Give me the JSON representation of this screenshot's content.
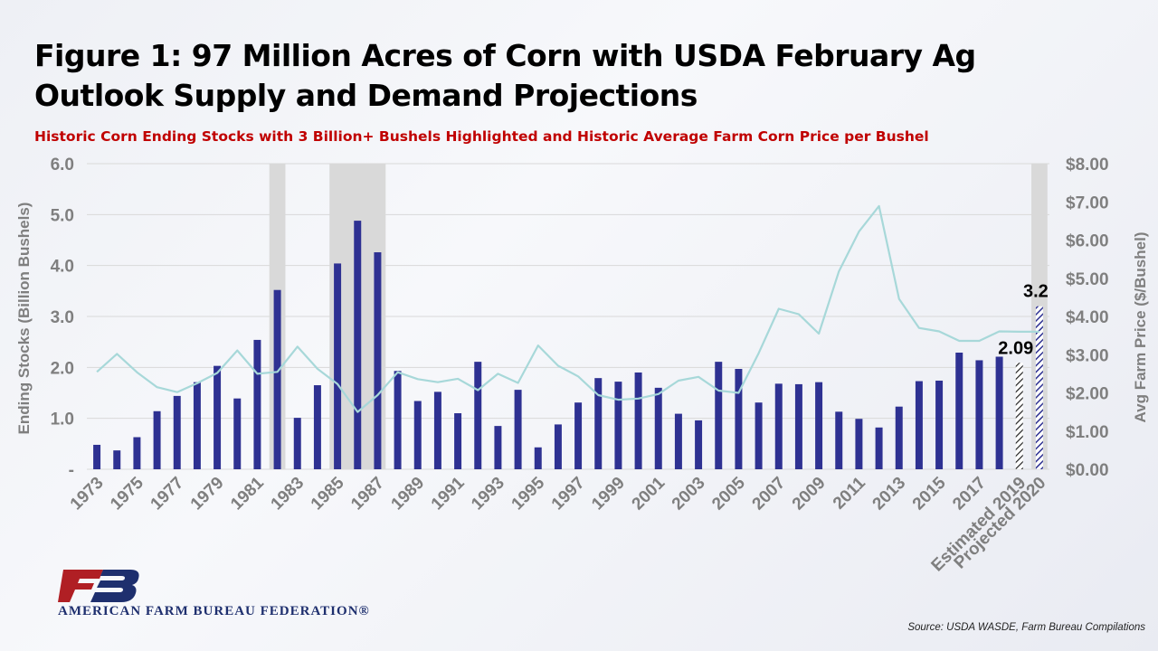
{
  "header": {
    "title_line1": "Figure 1:   97 Million Acres of Corn with USDA February Ag",
    "title_line2": "Outlook Supply and Demand Projections",
    "subtitle": "Historic Corn Ending Stocks with 3 Billion+ Bushels Highlighted and Historic Average Farm Corn Price per Bushel"
  },
  "footer": {
    "org_name": "AMERICAN FARM BUREAU FEDERATION®",
    "source": "Source: USDA WASDE, Farm Bureau Compilations"
  },
  "colors": {
    "bar": "#2e3192",
    "price_line": "#a7d8d9",
    "highlight": "#d9d9d9",
    "title": "#000000",
    "subtitle": "#c00000"
  },
  "chart_data": {
    "type": "bar",
    "title": "",
    "ylabel": "Ending Stocks (Billion Bushels)",
    "y2label": "Avg Farm Price ($/Bushel)",
    "ylim": [
      0,
      6
    ],
    "y2lim": [
      0,
      8
    ],
    "y_ticks": [
      "-",
      "1.0",
      "2.0",
      "3.0",
      "4.0",
      "5.0",
      "6.0"
    ],
    "y2_ticks": [
      "$0.00",
      "$1.00",
      "$2.00",
      "$3.00",
      "$4.00",
      "$5.00",
      "$6.00",
      "$7.00",
      "$8.00"
    ],
    "categories": [
      "1973",
      "1974",
      "1975",
      "1976",
      "1977",
      "1978",
      "1979",
      "1980",
      "1981",
      "1982",
      "1983",
      "1984",
      "1985",
      "1986",
      "1987",
      "1988",
      "1989",
      "1990",
      "1991",
      "1992",
      "1993",
      "1994",
      "1995",
      "1996",
      "1997",
      "1998",
      "1999",
      "2000",
      "2001",
      "2002",
      "2003",
      "2004",
      "2005",
      "2006",
      "2007",
      "2008",
      "2009",
      "2010",
      "2011",
      "2012",
      "2013",
      "2014",
      "2015",
      "2016",
      "2017",
      "2018",
      "Estimated 2019",
      "Projected 2020"
    ],
    "x_tick_labels": [
      "1973",
      "1975",
      "1977",
      "1979",
      "1981",
      "1983",
      "1985",
      "1987",
      "1989",
      "1991",
      "1993",
      "1995",
      "1997",
      "1999",
      "2001",
      "2003",
      "2005",
      "2007",
      "2009",
      "2011",
      "2013",
      "2015",
      "2017",
      "Estimated 2019",
      "Projected 2020"
    ],
    "highlight_categories": [
      "1982",
      "1985",
      "1986",
      "1987",
      "Projected 2020"
    ],
    "series": [
      {
        "type": "bar",
        "axis": "left",
        "values": [
          0.48,
          0.37,
          0.63,
          1.14,
          1.44,
          1.71,
          2.03,
          1.39,
          2.54,
          3.52,
          1.01,
          1.65,
          4.04,
          4.88,
          4.26,
          1.93,
          1.34,
          1.52,
          1.1,
          2.11,
          0.85,
          1.56,
          0.43,
          0.88,
          1.31,
          1.79,
          1.72,
          1.9,
          1.6,
          1.09,
          0.96,
          2.11,
          1.97,
          1.31,
          1.68,
          1.67,
          1.71,
          1.13,
          0.99,
          0.82,
          1.23,
          1.73,
          1.74,
          2.29,
          2.14,
          2.21,
          2.09,
          3.2
        ],
        "patterned": [
          "Estimated 2019",
          "Projected 2020"
        ]
      },
      {
        "type": "line",
        "axis": "right",
        "values": [
          2.55,
          3.02,
          2.54,
          2.15,
          2.02,
          2.25,
          2.52,
          3.11,
          2.5,
          2.55,
          3.21,
          2.63,
          2.23,
          1.5,
          1.94,
          2.54,
          2.36,
          2.28,
          2.37,
          2.07,
          2.5,
          2.26,
          3.24,
          2.71,
          2.43,
          1.94,
          1.82,
          1.85,
          1.97,
          2.32,
          2.42,
          2.06,
          2.0,
          3.04,
          4.2,
          4.06,
          3.55,
          5.18,
          6.22,
          6.89,
          4.46,
          3.7,
          3.61,
          3.36,
          3.36,
          3.61,
          3.6,
          3.6
        ]
      }
    ],
    "data_labels": [
      {
        "category": "Estimated 2019",
        "text": "2.09"
      },
      {
        "category": "Projected 2020",
        "text": "3.2"
      }
    ]
  }
}
